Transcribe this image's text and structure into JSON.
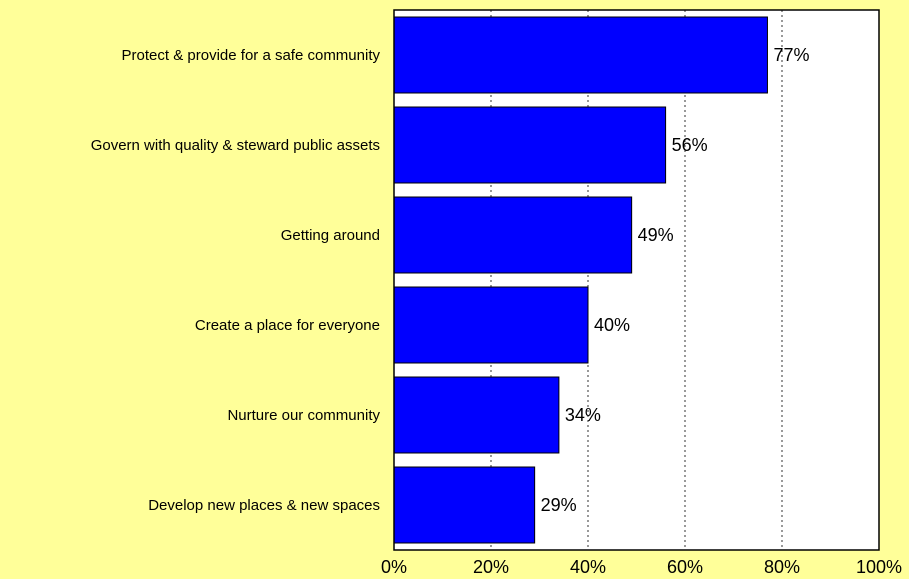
{
  "chart_data": {
    "type": "bar",
    "orientation": "horizontal",
    "categories": [
      "Protect & provide for a safe community",
      "Govern with quality & steward public assets",
      "Getting around",
      "Create a place for everyone",
      "Nurture our community",
      "Develop new places & new spaces"
    ],
    "values": [
      77,
      56,
      49,
      40,
      34,
      29
    ],
    "value_labels": [
      "77%",
      "56%",
      "49%",
      "40%",
      "34%",
      "29%"
    ],
    "x_ticks": [
      "0%",
      "20%",
      "40%",
      "60%",
      "80%",
      "100%"
    ],
    "xlim": [
      0,
      100
    ],
    "grid": "vertical dotted",
    "bar_color": "#0000FF",
    "plot_background": "#FFFFFF",
    "page_background": "#FFFF99"
  }
}
